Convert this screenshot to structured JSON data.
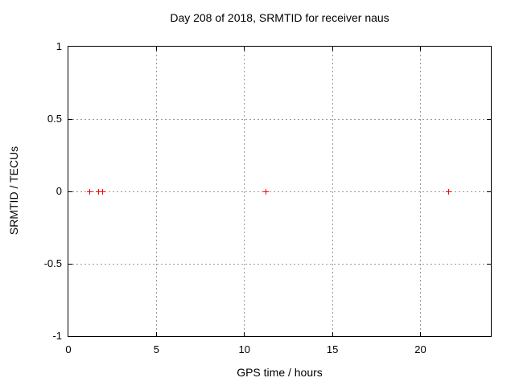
{
  "colors": {
    "background": "#ffffff",
    "axis_border": "#000000",
    "grid": "#999999",
    "tick_mark": "#000000",
    "text": "#000000",
    "marker": "#ff0000"
  },
  "chart_data": {
    "type": "scatter",
    "title": "Day 208 of 2018, SRMTID for receiver naus",
    "xlabel": "GPS time / hours",
    "ylabel": "SRMTID / TECUs",
    "xlim": [
      0,
      24
    ],
    "ylim": [
      -1,
      1
    ],
    "grid": "dashed",
    "legend": "none",
    "xticks": {
      "values": [
        0,
        5,
        10,
        15,
        20
      ],
      "labels": [
        "0",
        "5",
        "10",
        "15",
        "20"
      ]
    },
    "yticks": {
      "values": [
        1,
        0.5,
        0,
        -0.5,
        -1
      ],
      "labels": [
        "1",
        "0.5",
        "0",
        "-0.5",
        "-1"
      ]
    },
    "series": [
      {
        "name": "SRMTID",
        "marker": "plus",
        "color": "#ff0000",
        "x": [
          1.23,
          1.7,
          1.92,
          11.22,
          21.6
        ],
        "y": [
          0,
          0,
          0,
          0,
          0
        ]
      }
    ]
  }
}
